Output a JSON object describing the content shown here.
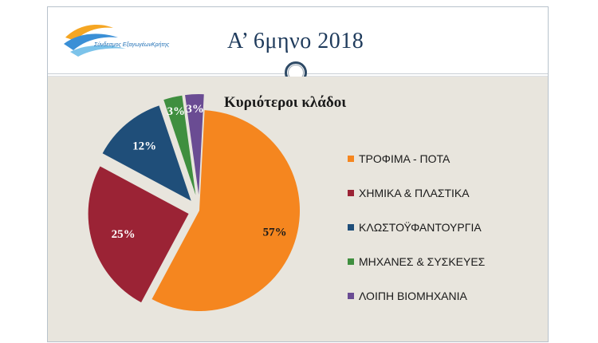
{
  "header": {
    "title": "Α’ 6μηνο 2018",
    "logo_text": "Σύνδεσμος ΕξαγωγέωνΚρήτης"
  },
  "colors": {
    "orange": "#f5861f",
    "crimson": "#9b2335",
    "navy": "#1f4e79",
    "green": "#3f8f3f",
    "purple": "#6a4c93"
  },
  "chart_data": {
    "type": "pie",
    "title": "Κυριότεροι κλάδοι",
    "categories": [
      "ΤΡΟΦΙΜΑ - ΠΟΤΑ",
      "ΧΗΜΙΚΑ & ΠΛΑΣΤΙΚΑ",
      "ΚΛΩΣΤΟΫΦΑΝΤΟΥΡΓΙΑ",
      "ΜΗΧΑΝΕΣ & ΣΥΣΚΕΥΕΣ",
      "ΛΟΙΠΗ ΒΙΟΜΗΧΑΝΙΑ"
    ],
    "values": [
      57,
      25,
      12,
      3,
      3
    ],
    "data_labels": [
      "57%",
      "25%",
      "12%",
      "3%",
      "3%"
    ],
    "colors": [
      "#f5861f",
      "#9b2335",
      "#1f4e79",
      "#3f8f3f",
      "#6a4c93"
    ],
    "legend_position": "right",
    "exploded": true
  }
}
